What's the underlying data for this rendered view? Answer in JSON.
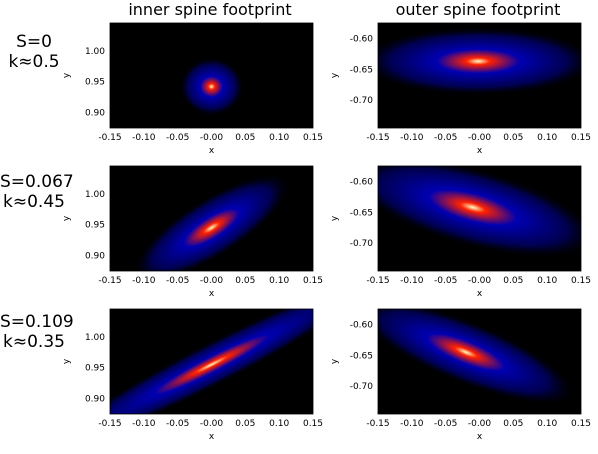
{
  "titles": {
    "left": "inner spine footprint",
    "right": "outer spine footprint"
  },
  "rows": [
    {
      "line1": "S=0",
      "line2": "k≈0.5"
    },
    {
      "line1": "S=0.067",
      "line2": "k≈0.45"
    },
    {
      "line1": "S=0.109",
      "line2": "k≈0.35"
    }
  ],
  "chart_data": [
    {
      "type": "heatmap",
      "title": "inner spine footprint",
      "row_label": "S=0 k≈0.5",
      "xlabel": "x",
      "ylabel": "y",
      "xlim": [
        -0.15,
        0.15
      ],
      "ylim": [
        0.875,
        1.045
      ],
      "xticks": [
        -0.15,
        -0.1,
        -0.05,
        -0.0,
        0.05,
        0.1,
        0.15
      ],
      "xtick_labels": [
        "-0.15",
        "-0.10",
        "-0.05",
        "-0.00",
        "0.05",
        "0.10",
        "0.15"
      ],
      "yticks": [
        0.9,
        0.95,
        1.0
      ],
      "ytick_labels": [
        "0.90",
        "0.95",
        "1.00"
      ],
      "peak": {
        "x": 0.0,
        "y": 0.942
      },
      "spread": {
        "sx": 0.03,
        "sy": 0.03
      },
      "tilt_deg": 0
    },
    {
      "type": "heatmap",
      "title": "outer spine footprint",
      "row_label": "S=0 k≈0.5",
      "xlabel": "x",
      "ylabel": "y",
      "xlim": [
        -0.15,
        0.15
      ],
      "ylim": [
        -0.745,
        -0.575
      ],
      "xticks": [
        -0.15,
        -0.1,
        -0.05,
        -0.0,
        0.05,
        0.1,
        0.15
      ],
      "xtick_labels": [
        "-0.15",
        "-0.10",
        "-0.05",
        "-0.00",
        "0.05",
        "0.10",
        "0.15"
      ],
      "yticks": [
        -0.7,
        -0.65,
        -0.6
      ],
      "ytick_labels": [
        "-0.70",
        "-0.65",
        "-0.60"
      ],
      "peak": {
        "x": -0.002,
        "y": -0.637
      },
      "spread": {
        "sx": 0.11,
        "sy": 0.035
      },
      "tilt_deg": 0
    },
    {
      "type": "heatmap",
      "title": "inner spine footprint",
      "row_label": "S=0.067 k≈0.45",
      "xlabel": "x",
      "ylabel": "y",
      "xlim": [
        -0.15,
        0.15
      ],
      "ylim": [
        0.875,
        1.045
      ],
      "xticks": [
        -0.15,
        -0.1,
        -0.05,
        -0.0,
        0.05,
        0.1,
        0.15
      ],
      "xtick_labels": [
        "-0.15",
        "-0.10",
        "-0.05",
        "-0.00",
        "0.05",
        "0.10",
        "0.15"
      ],
      "yticks": [
        0.9,
        0.95,
        1.0
      ],
      "ytick_labels": [
        "0.90",
        "0.95",
        "1.00"
      ],
      "peak": {
        "x": 0.0,
        "y": 0.945
      },
      "spread": {
        "sx": 0.085,
        "sy": 0.03
      },
      "tilt_deg": 32
    },
    {
      "type": "heatmap",
      "title": "outer spine footprint",
      "row_label": "S=0.067 k≈0.45",
      "xlabel": "x",
      "ylabel": "y",
      "xlim": [
        -0.15,
        0.15
      ],
      "ylim": [
        -0.745,
        -0.575
      ],
      "xticks": [
        -0.15,
        -0.1,
        -0.05,
        -0.0,
        0.05,
        0.1,
        0.15
      ],
      "xtick_labels": [
        "-0.15",
        "-0.10",
        "-0.05",
        "-0.00",
        "0.05",
        "0.10",
        "0.15"
      ],
      "yticks": [
        -0.7,
        -0.65,
        -0.6
      ],
      "ytick_labels": [
        "-0.70",
        "-0.65",
        "-0.60"
      ],
      "peak": {
        "x": -0.01,
        "y": -0.642
      },
      "spread": {
        "sx": 0.12,
        "sy": 0.04
      },
      "tilt_deg": -15
    },
    {
      "type": "heatmap",
      "title": "inner spine footprint",
      "row_label": "S=0.109 k≈0.35",
      "xlabel": "x",
      "ylabel": "y",
      "xlim": [
        -0.15,
        0.15
      ],
      "ylim": [
        0.875,
        1.045
      ],
      "xticks": [
        -0.15,
        -0.1,
        -0.05,
        -0.0,
        0.05,
        0.1,
        0.15
      ],
      "xtick_labels": [
        "-0.15",
        "-0.10",
        "-0.05",
        "-0.00",
        "0.05",
        "0.10",
        "0.15"
      ],
      "yticks": [
        0.9,
        0.95,
        1.0
      ],
      "ytick_labels": [
        "0.90",
        "0.95",
        "1.00"
      ],
      "peak": {
        "x": 0.0,
        "y": 0.955
      },
      "spread": {
        "sx": 0.17,
        "sy": 0.022
      },
      "tilt_deg": 27
    },
    {
      "type": "heatmap",
      "title": "outer spine footprint",
      "row_label": "S=0.109 k≈0.35",
      "xlabel": "x",
      "ylabel": "y",
      "xlim": [
        -0.15,
        0.15
      ],
      "ylim": [
        -0.745,
        -0.575
      ],
      "xticks": [
        -0.15,
        -0.1,
        -0.05,
        -0.0,
        0.05,
        0.1,
        0.15
      ],
      "xtick_labels": [
        "-0.15",
        "-0.10",
        "-0.05",
        "-0.00",
        "0.05",
        "0.10",
        "0.15"
      ],
      "yticks": [
        -0.7,
        -0.65,
        -0.6
      ],
      "ytick_labels": [
        "-0.70",
        "-0.65",
        "-0.60"
      ],
      "peak": {
        "x": -0.02,
        "y": -0.645
      },
      "spread": {
        "sx": 0.11,
        "sy": 0.032
      },
      "tilt_deg": -22
    }
  ],
  "colors": {
    "background": "#000000",
    "low": "#0000b0",
    "mid": "#ff2000",
    "high": "#ffffc0"
  }
}
